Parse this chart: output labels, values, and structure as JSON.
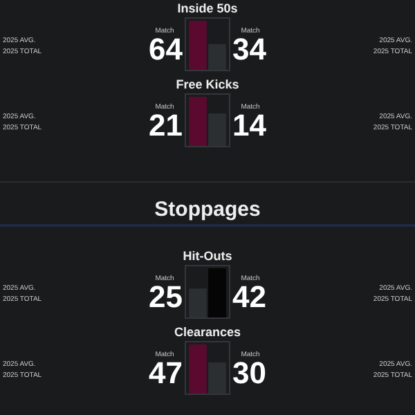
{
  "chart_data": [
    {
      "type": "bar",
      "title": "Inside 50s",
      "categories": [
        null,
        null
      ],
      "values": [
        64,
        34
      ],
      "colors": [
        "#5a0a2f",
        "#2c2f31"
      ],
      "data_labels": true,
      "legend": false,
      "annotations": [
        "Match",
        "Match",
        "2025 AVG.",
        "2025 TOTAL",
        "2025 AVG.",
        "2025 TOTAL"
      ]
    },
    {
      "type": "bar",
      "title": "Free Kicks",
      "categories": [
        null,
        null
      ],
      "values": [
        21,
        14
      ],
      "colors": [
        "#5a0a2f",
        "#2c2f31"
      ],
      "data_labels": true,
      "legend": false,
      "annotations": [
        "Match",
        "Match",
        "2025 AVG.",
        "2025 TOTAL",
        "2025 AVG.",
        "2025 TOTAL"
      ]
    },
    {
      "type": "other",
      "title": "Stoppages"
    },
    {
      "type": "bar",
      "title": "Hit-Outs",
      "categories": [
        null,
        null
      ],
      "values": [
        25,
        42
      ],
      "colors": [
        "#2c2f31",
        "#050505"
      ],
      "data_labels": true,
      "legend": false,
      "annotations": [
        "Match",
        "Match",
        "2025 AVG.",
        "2025 TOTAL",
        "2025 AVG.",
        "2025 TOTAL"
      ]
    },
    {
      "type": "bar",
      "title": "Clearances",
      "categories": [
        null,
        null
      ],
      "values": [
        47,
        30
      ],
      "colors": [
        "#5a0a2f",
        "#2c2f31"
      ],
      "data_labels": true,
      "legend": false,
      "annotations": [
        "Match",
        "Match",
        "2025 AVG.",
        "2025 TOTAL",
        "2025 AVG.",
        "2025 TOTAL"
      ]
    }
  ]
}
